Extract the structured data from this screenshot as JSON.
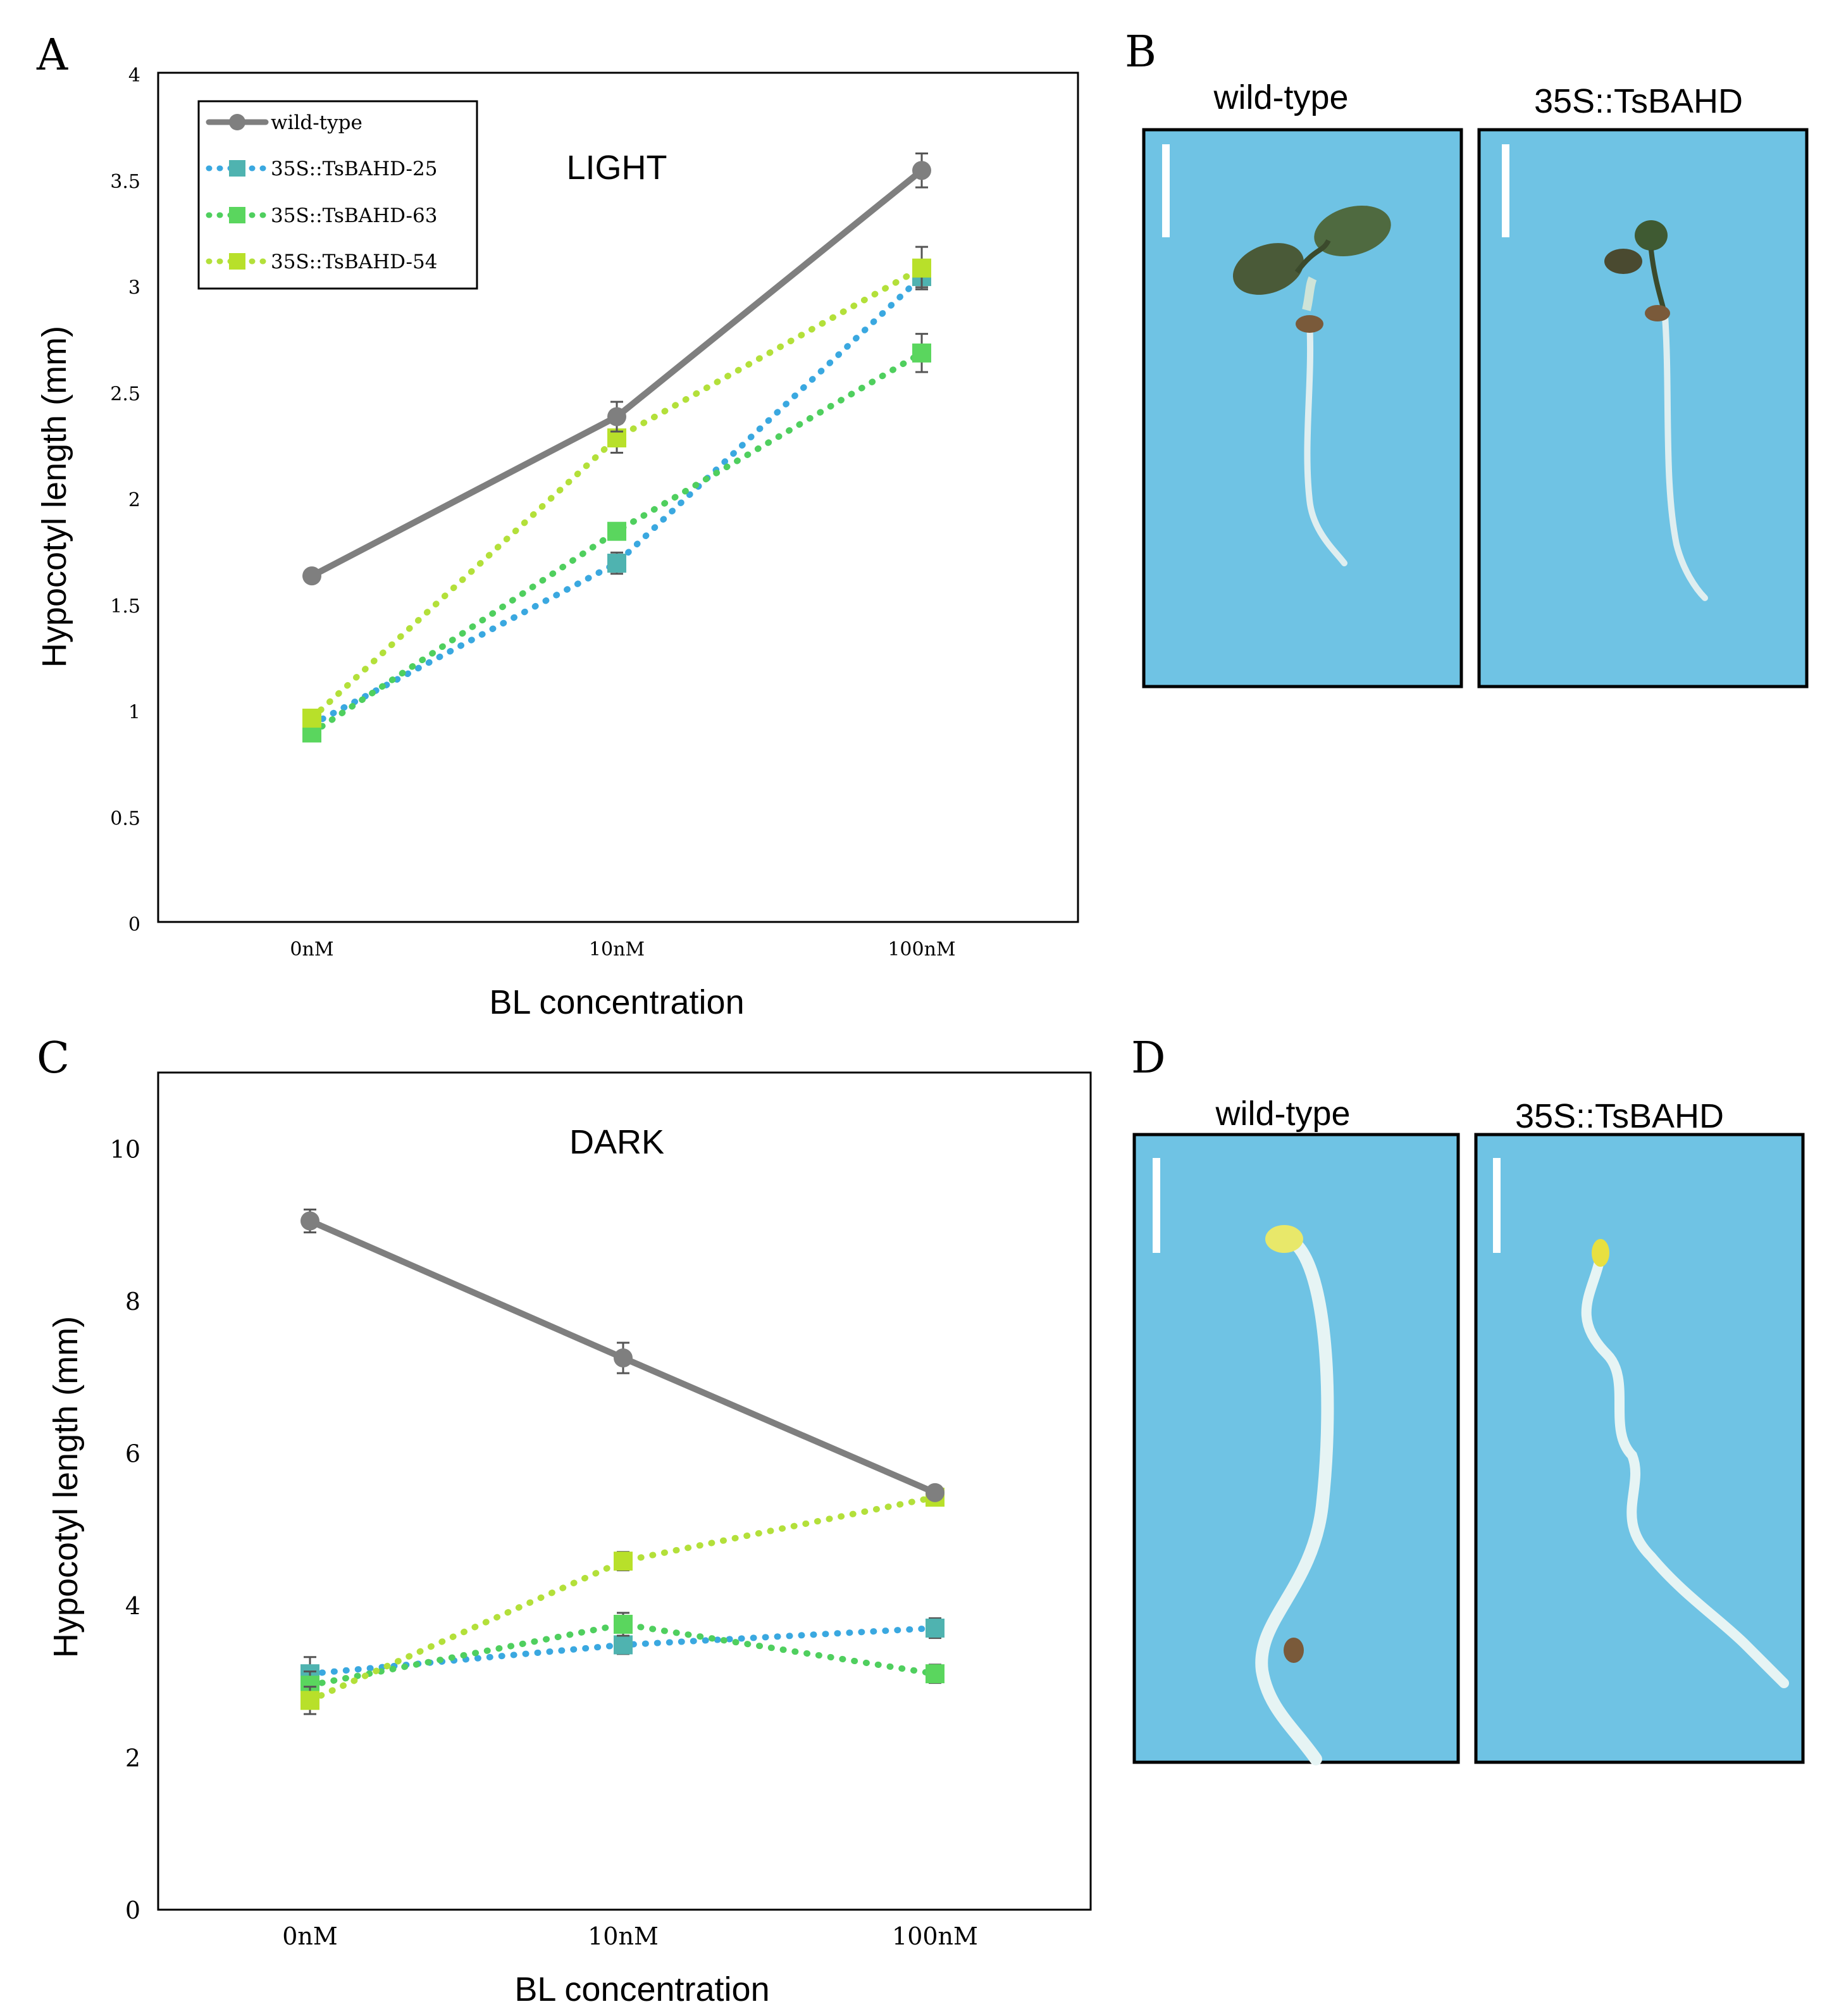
{
  "panels": {
    "A": "A",
    "B": "B",
    "C": "C",
    "D": "D"
  },
  "photos": {
    "B": {
      "left_label": "wild-type",
      "right_label": "35S::TsBAHD"
    },
    "D": {
      "left_label": "wild-type",
      "right_label": "35S::TsBAHD"
    }
  },
  "colors": {
    "wild_type": "#7f7f7f",
    "line25": "#3aa8e0",
    "line63": "#4fcf5e",
    "line54": "#b3e03a",
    "marker25": "#4fb3b0",
    "marker63": "#5ad65e",
    "marker54": "#b8e02a",
    "photo_bg": "#6fc3e4"
  },
  "chart_data": [
    {
      "type": "line",
      "title": "LIGHT",
      "xlabel": "BL concentration",
      "ylabel": "Hypocotyl length (mm)",
      "categories": [
        "0nM",
        "10nM",
        "100nM"
      ],
      "ylim": [
        0,
        4
      ],
      "yticks": [
        "0",
        "0.5",
        "1",
        "1.5",
        "2",
        "2.5",
        "3",
        "3.5",
        "4"
      ],
      "legend_position": "top-left",
      "series": [
        {
          "key": "wild_type",
          "name": "wild-type",
          "values": [
            1.63,
            2.38,
            3.54
          ],
          "errors": [
            0.02,
            0.07,
            0.08
          ]
        },
        {
          "key": "line25",
          "name": "35S::TsBAHD-25",
          "values": [
            0.93,
            1.69,
            3.04
          ],
          "errors": [
            0.02,
            0.05,
            0.05
          ]
        },
        {
          "key": "line63",
          "name": "35S::TsBAHD-63",
          "values": [
            0.89,
            1.84,
            2.68
          ],
          "errors": [
            0.02,
            0.03,
            0.09
          ]
        },
        {
          "key": "line54",
          "name": "35S::TsBAHD-54",
          "values": [
            0.96,
            2.28,
            3.08
          ],
          "errors": [
            0.02,
            0.07,
            0.1
          ]
        }
      ]
    },
    {
      "type": "line",
      "title": "DARK",
      "xlabel": "BL concentration",
      "ylabel": "Hypocotyl length (mm)",
      "categories": [
        "0nM",
        "10nM",
        "100nM"
      ],
      "ylim": [
        0,
        11
      ],
      "yticks": [
        "0",
        "2",
        "4",
        "6",
        "8",
        "10"
      ],
      "series": [
        {
          "key": "wild_type",
          "name": "wild-type",
          "values": [
            9.05,
            7.25,
            5.48
          ],
          "errors": [
            0.15,
            0.2,
            0.08
          ]
        },
        {
          "key": "line25",
          "name": "35S::TsBAHD-25",
          "values": [
            3.1,
            3.48,
            3.7
          ],
          "errors": [
            0.22,
            0.12,
            0.13
          ]
        },
        {
          "key": "line63",
          "name": "35S::TsBAHD-63",
          "values": [
            2.95,
            3.75,
            3.1
          ],
          "errors": [
            0.18,
            0.15,
            0.12
          ]
        },
        {
          "key": "line54",
          "name": "35S::TsBAHD-54",
          "values": [
            2.75,
            4.58,
            5.42
          ],
          "errors": [
            0.18,
            0.12,
            0.06
          ]
        }
      ]
    }
  ]
}
